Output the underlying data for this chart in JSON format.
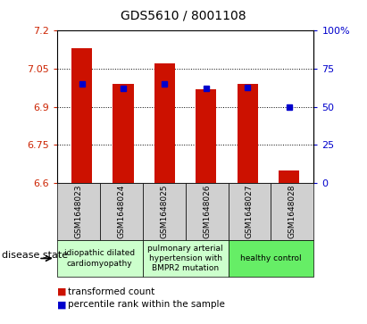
{
  "title": "GDS5610 / 8001108",
  "samples": [
    "GSM1648023",
    "GSM1648024",
    "GSM1648025",
    "GSM1648026",
    "GSM1648027",
    "GSM1648028"
  ],
  "red_values": [
    7.13,
    6.99,
    7.07,
    6.97,
    6.99,
    6.65
  ],
  "blue_percentiles": [
    65,
    62,
    65,
    62,
    63,
    50
  ],
  "y_min": 6.6,
  "y_max": 7.2,
  "y_ticks": [
    6.6,
    6.75,
    6.9,
    7.05,
    7.2
  ],
  "y_tick_labels": [
    "6.6",
    "6.75",
    "6.9",
    "7.05",
    "7.2"
  ],
  "right_y_ticks": [
    0,
    25,
    50,
    75,
    100
  ],
  "right_y_labels": [
    "0",
    "25",
    "50",
    "75",
    "100%"
  ],
  "grid_lines": [
    6.75,
    6.9,
    7.05
  ],
  "bar_color": "#cc1100",
  "marker_color": "#0000cc",
  "bar_width": 0.5,
  "legend_red": "transformed count",
  "legend_blue": "percentile rank within the sample",
  "disease_state_label": "disease state",
  "axis_color_red": "#cc2200",
  "axis_color_blue": "#0000cc",
  "group_defs": [
    {
      "label": "idiopathic dilated\ncardiomyopathy",
      "start": 0,
      "end": 2,
      "color": "#ccffcc"
    },
    {
      "label": "pulmonary arterial\nhypertension with\nBMPR2 mutation",
      "start": 2,
      "end": 4,
      "color": "#ccffcc"
    },
    {
      "label": "healthy control",
      "start": 4,
      "end": 6,
      "color": "#66ee66"
    }
  ]
}
